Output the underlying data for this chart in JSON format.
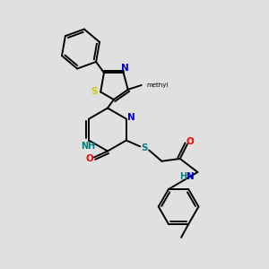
{
  "bg": "#e0e0e0",
  "bond_color": "#000000",
  "N_color": "#0000cc",
  "O_color": "#ff0000",
  "S_color": "#cccc00",
  "S2_color": "#008080",
  "H_color": "#008080",
  "figsize": [
    3.0,
    3.0
  ],
  "dpi": 100,
  "xlim": [
    0,
    10
  ],
  "ylim": [
    0,
    11
  ]
}
